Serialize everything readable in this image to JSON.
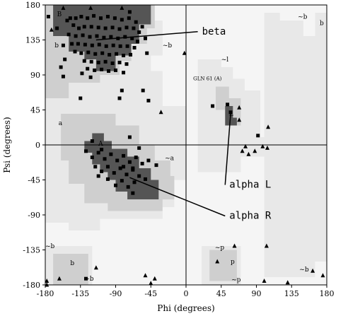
{
  "chart_data": {
    "type": "scatter",
    "xlabel": "Phi (degrees)",
    "ylabel": "Psi (degrees)",
    "xlim": [
      -180,
      180
    ],
    "ylim": [
      -180,
      180
    ],
    "xticks": [
      -180,
      -135,
      -90,
      -45,
      0,
      45,
      90,
      135,
      180
    ],
    "yticks": [
      -180,
      -135,
      -90,
      -45,
      0,
      45,
      90,
      135,
      180
    ],
    "tick_labels_x": [
      "-180",
      "-135",
      "-90",
      "-45",
      "0",
      "45",
      "90",
      "135",
      "180"
    ],
    "tick_labels_y": [
      "-180",
      "-135",
      "-90",
      "-45",
      "0",
      "45",
      "90",
      "135",
      "180"
    ],
    "colors": {
      "core": "#555555",
      "allowed": "#cfcfcf",
      "generous": "#e8e8e8",
      "outer": "#f5f5f5",
      "point": "#000000"
    },
    "annotations": [
      {
        "text": "beta",
        "target": [
          -115,
          135
        ],
        "at": [
          15,
          142
        ]
      },
      {
        "text": "alpha L",
        "target": [
          57,
          40
        ],
        "at": [
          50,
          -55
        ]
      },
      {
        "text": "alpha R",
        "target": [
          -72,
          -42
        ],
        "at": [
          50,
          -95
        ]
      }
    ],
    "region_labels": [
      {
        "text": "B",
        "x": -165,
        "y": 168
      },
      {
        "text": "b",
        "x": -168,
        "y": 128
      },
      {
        "text": "a",
        "x": -163,
        "y": 28
      },
      {
        "text": "A",
        "x": -112,
        "y": 2
      },
      {
        "text": "L",
        "x": 55,
        "y": 40
      },
      {
        "text": "~b",
        "x": -30,
        "y": 128
      },
      {
        "text": "~l",
        "x": 45,
        "y": 110
      },
      {
        "text": "~a",
        "x": -27,
        "y": -17
      },
      {
        "text": "~b",
        "x": -180,
        "y": -130
      },
      {
        "text": "b",
        "x": -148,
        "y": -152
      },
      {
        "text": "~b",
        "x": -130,
        "y": -172
      },
      {
        "text": "~p",
        "x": 37,
        "y": -132
      },
      {
        "text": "p",
        "x": 57,
        "y": -150
      },
      {
        "text": "~p",
        "x": 58,
        "y": -173
      },
      {
        "text": "~b",
        "x": 145,
        "y": -160
      },
      {
        "text": "~b",
        "x": 143,
        "y": 165
      },
      {
        "text": "b",
        "x": 171,
        "y": 157
      }
    ],
    "residue_labels": [
      {
        "text": "GLN 61 (A)",
        "x": 20,
        "y": 85
      }
    ],
    "series": [
      {
        "marker": "square",
        "points": [
          [
            -152,
            160
          ],
          [
            -148,
            163
          ],
          [
            -141,
            163
          ],
          [
            -134,
            165
          ],
          [
            -126,
            163
          ],
          [
            -118,
            166
          ],
          [
            -109,
            163
          ],
          [
            -100,
            165
          ],
          [
            -91,
            163
          ],
          [
            -82,
            161
          ],
          [
            -73,
            163
          ],
          [
            -64,
            158
          ],
          [
            -56,
            152
          ],
          [
            -144,
            154
          ],
          [
            -137,
            150
          ],
          [
            -130,
            152
          ],
          [
            -121,
            152
          ],
          [
            -112,
            151
          ],
          [
            -103,
            150
          ],
          [
            -94,
            151
          ],
          [
            -85,
            149
          ],
          [
            -76,
            151
          ],
          [
            -67,
            150
          ],
          [
            -60,
            145
          ],
          [
            -150,
            142
          ],
          [
            -141,
            140
          ],
          [
            -132,
            141
          ],
          [
            -123,
            139
          ],
          [
            -114,
            140
          ],
          [
            -105,
            138
          ],
          [
            -96,
            139
          ],
          [
            -87,
            137
          ],
          [
            -78,
            139
          ],
          [
            -69,
            137
          ],
          [
            -62,
            133
          ],
          [
            -146,
            130
          ],
          [
            -138,
            130
          ],
          [
            -129,
            129
          ],
          [
            -120,
            128
          ],
          [
            -111,
            129
          ],
          [
            -102,
            127
          ],
          [
            -93,
            128
          ],
          [
            -84,
            127
          ],
          [
            -75,
            127
          ],
          [
            -66,
            125
          ],
          [
            -142,
            120
          ],
          [
            -134,
            118
          ],
          [
            -125,
            119
          ],
          [
            -116,
            117
          ],
          [
            -107,
            118
          ],
          [
            -98,
            116
          ],
          [
            -89,
            117
          ],
          [
            -80,
            115
          ],
          [
            -71,
            116
          ],
          [
            -130,
            108
          ],
          [
            -121,
            107
          ],
          [
            -112,
            106
          ],
          [
            -103,
            107
          ],
          [
            -94,
            105
          ],
          [
            -85,
            106
          ],
          [
            -76,
            104
          ],
          [
            -126,
            98
          ],
          [
            -117,
            96
          ],
          [
            -108,
            97
          ],
          [
            -99,
            95
          ],
          [
            -90,
            96
          ],
          [
            -155,
            110
          ],
          [
            -80,
            93
          ],
          [
            -157,
            128
          ],
          [
            -52,
            137
          ],
          [
            -176,
            165
          ],
          [
            -72,
            171
          ],
          [
            -50,
            118
          ],
          [
            -165,
            150
          ],
          [
            -160,
            100
          ],
          [
            -133,
            92
          ],
          [
            -157,
            88
          ],
          [
            -122,
            87
          ],
          [
            -135,
            60
          ],
          [
            -82,
            70
          ],
          [
            -55,
            70
          ],
          [
            -48,
            57
          ],
          [
            -85,
            60
          ],
          [
            -128,
            -8
          ],
          [
            -120,
            -16
          ],
          [
            -112,
            -10
          ],
          [
            -104,
            -18
          ],
          [
            -96,
            -12
          ],
          [
            -88,
            -20
          ],
          [
            -80,
            -14
          ],
          [
            -72,
            -22
          ],
          [
            -64,
            -16
          ],
          [
            -56,
            -24
          ],
          [
            -116,
            -28
          ],
          [
            -108,
            -34
          ],
          [
            -100,
            -28
          ],
          [
            -92,
            -36
          ],
          [
            -84,
            -30
          ],
          [
            -76,
            -38
          ],
          [
            -68,
            -32
          ],
          [
            -60,
            -40
          ],
          [
            -52,
            -44
          ],
          [
            -100,
            -44
          ],
          [
            -90,
            -52
          ],
          [
            -82,
            -46
          ],
          [
            -74,
            -54
          ],
          [
            -66,
            -48
          ],
          [
            -108,
            -6
          ],
          [
            -120,
            5
          ],
          [
            -60,
            -4
          ],
          [
            -68,
            -62
          ],
          [
            -48,
            -20
          ],
          [
            -38,
            -26
          ],
          [
            -72,
            10
          ],
          [
            -80,
            -28
          ],
          [
            -112,
            -40
          ],
          [
            -128,
            -172
          ],
          [
            53,
            52
          ],
          [
            57,
            42
          ],
          [
            34,
            50
          ],
          [
            92,
            12
          ],
          [
            -68,
            -30
          ]
        ]
      },
      {
        "marker": "triangle",
        "points": [
          [
            -157,
            176
          ],
          [
            -122,
            176
          ],
          [
            -82,
            176
          ],
          [
            -172,
            148
          ],
          [
            -32,
            42
          ],
          [
            -2,
            118
          ],
          [
            68,
            48
          ],
          [
            72,
            -8
          ],
          [
            68,
            32
          ],
          [
            76,
            -2
          ],
          [
            80,
            -12
          ],
          [
            88,
            -8
          ],
          [
            98,
            -2
          ],
          [
            104,
            -4
          ],
          [
            105,
            23
          ],
          [
            62,
            -130
          ],
          [
            40,
            -150
          ],
          [
            100,
            -175
          ],
          [
            130,
            -177
          ],
          [
            162,
            -162
          ],
          [
            175,
            -168
          ],
          [
            -162,
            -172
          ],
          [
            -178,
            -175
          ],
          [
            -178,
            -180
          ],
          [
            -115,
            -158
          ],
          [
            -52,
            -168
          ],
          [
            -40,
            -172
          ],
          [
            -45,
            -178
          ],
          [
            103,
            -130
          ]
        ]
      }
    ]
  }
}
